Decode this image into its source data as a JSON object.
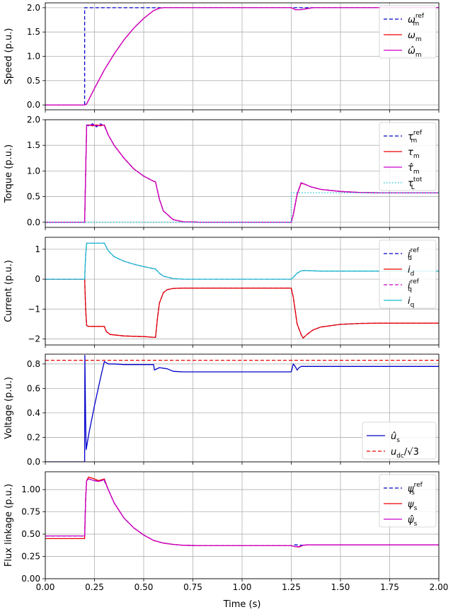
{
  "figure": {
    "xlabel": "Time (s)"
  },
  "chart_data": [
    {
      "type": "line",
      "ylabel": "Speed (p.u.)",
      "xlim": [
        0,
        2
      ],
      "ylim": [
        -0.1,
        2.1
      ],
      "xticks": [
        "0.00",
        "0.25",
        "0.50",
        "0.75",
        "1.00",
        "1.25",
        "1.50",
        "1.75",
        "2.00"
      ],
      "yticks": [
        "0.0",
        "0.5",
        "1.0",
        "1.5",
        "2.0"
      ],
      "grid": true,
      "legend_position": "top-right",
      "series": [
        {
          "name": "ω_m^ref",
          "legend": {
            "base": "ω",
            "sub": "m",
            "sup": "ref"
          },
          "color": "#0000cc",
          "style": "dashed",
          "x": [
            0,
            0.2,
            0.2,
            2.0
          ],
          "y": [
            0,
            0,
            2.0,
            2.0
          ]
        },
        {
          "name": "ω_m",
          "legend": {
            "base": "ω",
            "sub": "m"
          },
          "color": "#ee0000",
          "style": "solid",
          "x": [
            0,
            0.2,
            0.21,
            0.25,
            0.3,
            0.35,
            0.4,
            0.45,
            0.5,
            0.55,
            0.58,
            0.6,
            1.25,
            1.27,
            1.3,
            1.33,
            1.36,
            2.0
          ],
          "y": [
            0,
            0,
            0.02,
            0.34,
            0.72,
            1.05,
            1.34,
            1.58,
            1.78,
            1.94,
            1.99,
            2.0,
            2.0,
            1.96,
            1.96,
            1.98,
            2.0,
            2.0
          ]
        },
        {
          "name": "ω̂_m",
          "legend": {
            "base": "ω̂",
            "sub": "m"
          },
          "color": "#cc00cc",
          "style": "solid",
          "x": [
            0,
            0.2,
            0.21,
            0.25,
            0.3,
            0.35,
            0.4,
            0.45,
            0.5,
            0.55,
            0.58,
            0.6,
            1.25,
            1.27,
            1.3,
            1.33,
            1.36,
            2.0
          ],
          "y": [
            0,
            0,
            0.02,
            0.34,
            0.72,
            1.05,
            1.34,
            1.58,
            1.78,
            1.94,
            1.99,
            2.0,
            2.0,
            1.96,
            1.96,
            1.98,
            2.0,
            2.0
          ]
        }
      ]
    },
    {
      "type": "line",
      "ylabel": "Torque (p.u.)",
      "xlim": [
        0,
        2
      ],
      "ylim": [
        -0.1,
        2.0
      ],
      "xticks": [
        "0.00",
        "0.25",
        "0.50",
        "0.75",
        "1.00",
        "1.25",
        "1.50",
        "1.75",
        "2.00"
      ],
      "yticks": [
        "0.0",
        "0.5",
        "1.0",
        "1.5",
        "2.0"
      ],
      "grid": true,
      "legend_position": "top-right",
      "series": [
        {
          "name": "τ_m^ref",
          "legend": {
            "base": "τ",
            "sub": "m",
            "sup": "ref"
          },
          "color": "#0000cc",
          "style": "dashed",
          "x": [
            0,
            0.2,
            0.21,
            0.22,
            0.24,
            0.26,
            0.28,
            0.3,
            0.32,
            0.35,
            0.4,
            0.45,
            0.5,
            0.55,
            0.56,
            0.58,
            0.6,
            0.65,
            0.7,
            0.8,
            1.25,
            1.26,
            1.28,
            1.3,
            1.32,
            1.35,
            1.4,
            1.5,
            1.6,
            1.7,
            2.0
          ],
          "y": [
            0,
            0,
            1.9,
            1.88,
            1.92,
            1.86,
            1.92,
            1.88,
            1.7,
            1.5,
            1.25,
            1.04,
            0.9,
            0.8,
            0.79,
            0.45,
            0.22,
            0.05,
            0.01,
            0,
            0,
            0.15,
            0.55,
            0.77,
            0.74,
            0.69,
            0.64,
            0.6,
            0.58,
            0.575,
            0.575
          ]
        },
        {
          "name": "τ_m",
          "legend": {
            "base": "τ",
            "sub": "m"
          },
          "color": "#ee0000",
          "style": "solid",
          "x": [
            0,
            0.2,
            0.21,
            0.22,
            0.24,
            0.26,
            0.28,
            0.3,
            0.32,
            0.35,
            0.4,
            0.45,
            0.5,
            0.55,
            0.56,
            0.58,
            0.6,
            0.65,
            0.7,
            0.8,
            1.25,
            1.26,
            1.28,
            1.3,
            1.32,
            1.35,
            1.4,
            1.5,
            1.6,
            1.7,
            2.0
          ],
          "y": [
            0,
            0,
            1.88,
            1.9,
            1.88,
            1.9,
            1.88,
            1.9,
            1.7,
            1.5,
            1.25,
            1.04,
            0.9,
            0.8,
            0.79,
            0.45,
            0.22,
            0.05,
            0.01,
            0,
            0,
            0.14,
            0.54,
            0.76,
            0.74,
            0.69,
            0.64,
            0.6,
            0.58,
            0.575,
            0.575
          ]
        },
        {
          "name": "τ̂_m",
          "legend": {
            "base": "τ̂",
            "sub": "m"
          },
          "color": "#cc00cc",
          "style": "solid",
          "x": [
            0,
            0.2,
            0.21,
            0.22,
            0.24,
            0.26,
            0.28,
            0.3,
            0.32,
            0.35,
            0.4,
            0.45,
            0.5,
            0.55,
            0.56,
            0.58,
            0.6,
            0.65,
            0.7,
            0.8,
            1.25,
            1.26,
            1.28,
            1.3,
            1.32,
            1.35,
            1.4,
            1.5,
            1.6,
            1.7,
            2.0
          ],
          "y": [
            0,
            0,
            1.89,
            1.89,
            1.9,
            1.88,
            1.9,
            1.89,
            1.7,
            1.5,
            1.25,
            1.04,
            0.9,
            0.8,
            0.79,
            0.45,
            0.22,
            0.05,
            0.01,
            0,
            0,
            0.15,
            0.55,
            0.77,
            0.74,
            0.69,
            0.64,
            0.6,
            0.58,
            0.575,
            0.575
          ]
        },
        {
          "name": "τ_L^tot",
          "legend": {
            "base": "τ",
            "sub": "L",
            "sup": "tot"
          },
          "color": "#17becf",
          "style": "dotted",
          "x": [
            0,
            1.25,
            1.25,
            2.0
          ],
          "y": [
            0,
            0,
            0.575,
            0.575
          ]
        }
      ]
    },
    {
      "type": "line",
      "ylabel": "Current (p.u.)",
      "xlim": [
        0,
        2
      ],
      "ylim": [
        -2.2,
        1.4
      ],
      "xticks": [
        "0.00",
        "0.25",
        "0.50",
        "0.75",
        "1.00",
        "1.25",
        "1.50",
        "1.75",
        "2.00"
      ],
      "yticks": [
        "−2",
        "−1",
        "0",
        "1"
      ],
      "yticks_values": [
        -2,
        -1,
        0,
        1
      ],
      "grid": true,
      "legend_position": "top-right",
      "series": [
        {
          "name": "i_d^ref",
          "legend": {
            "base": "i",
            "sub": "d",
            "sup": "ref"
          },
          "color": "#0000cc",
          "style": "dashed",
          "x": [
            0,
            0.2,
            0.205,
            0.21,
            0.22,
            0.25,
            0.28,
            0.3,
            0.31,
            0.33,
            0.4,
            0.5,
            0.56,
            0.57,
            0.58,
            0.6,
            0.62,
            0.65,
            0.7,
            1.25,
            1.26,
            1.28,
            1.3,
            1.31,
            1.33,
            1.36,
            1.4,
            1.5,
            1.6,
            1.7,
            2.0
          ],
          "y": [
            0,
            0,
            -1.0,
            -1.55,
            -1.58,
            -1.58,
            -1.58,
            -1.58,
            -1.75,
            -1.85,
            -1.9,
            -1.92,
            -1.95,
            -1.3,
            -0.8,
            -0.45,
            -0.35,
            -0.31,
            -0.3,
            -0.3,
            -0.6,
            -1.5,
            -1.85,
            -1.97,
            -1.85,
            -1.7,
            -1.6,
            -1.51,
            -1.48,
            -1.47,
            -1.47
          ]
        },
        {
          "name": "i_d",
          "legend": {
            "base": "i",
            "sub": "d"
          },
          "color": "#ee0000",
          "style": "solid",
          "x": [
            0,
            0.2,
            0.205,
            0.21,
            0.22,
            0.25,
            0.28,
            0.3,
            0.31,
            0.33,
            0.4,
            0.5,
            0.56,
            0.57,
            0.58,
            0.6,
            0.62,
            0.65,
            0.7,
            1.25,
            1.26,
            1.28,
            1.3,
            1.31,
            1.33,
            1.36,
            1.4,
            1.5,
            1.6,
            1.7,
            2.0
          ],
          "y": [
            0,
            0,
            -1.0,
            -1.55,
            -1.58,
            -1.58,
            -1.58,
            -1.58,
            -1.75,
            -1.85,
            -1.9,
            -1.92,
            -1.95,
            -1.3,
            -0.8,
            -0.45,
            -0.35,
            -0.31,
            -0.3,
            -0.3,
            -0.6,
            -1.5,
            -1.85,
            -1.97,
            -1.85,
            -1.7,
            -1.6,
            -1.51,
            -1.48,
            -1.47,
            -1.47
          ]
        },
        {
          "name": "i_q^ref",
          "legend": {
            "base": "i",
            "sub": "q",
            "sup": "ref"
          },
          "color": "#cc00cc",
          "style": "dashed",
          "x": [
            0,
            0.2,
            0.205,
            0.21,
            0.22,
            0.25,
            0.28,
            0.3,
            0.32,
            0.35,
            0.4,
            0.45,
            0.5,
            0.55,
            0.56,
            0.58,
            0.6,
            0.65,
            0.7,
            0.8,
            1.25,
            1.26,
            1.28,
            1.3,
            1.32,
            1.35,
            1.4,
            1.5,
            2.0
          ],
          "y": [
            0,
            0,
            0.8,
            1.2,
            1.2,
            1.2,
            1.2,
            1.2,
            0.95,
            0.75,
            0.6,
            0.5,
            0.42,
            0.35,
            0.34,
            0.2,
            0.1,
            0.02,
            0,
            0,
            0,
            0.06,
            0.2,
            0.28,
            0.29,
            0.28,
            0.27,
            0.27,
            0.27
          ]
        },
        {
          "name": "i_q",
          "legend": {
            "base": "i",
            "sub": "q"
          },
          "color": "#17becf",
          "style": "solid",
          "x": [
            0,
            0.2,
            0.205,
            0.21,
            0.22,
            0.25,
            0.28,
            0.3,
            0.32,
            0.35,
            0.4,
            0.45,
            0.5,
            0.55,
            0.56,
            0.58,
            0.6,
            0.65,
            0.7,
            0.8,
            1.25,
            1.26,
            1.28,
            1.3,
            1.32,
            1.35,
            1.4,
            1.5,
            2.0
          ],
          "y": [
            0,
            0,
            0.8,
            1.2,
            1.2,
            1.2,
            1.2,
            1.2,
            0.95,
            0.75,
            0.6,
            0.5,
            0.42,
            0.35,
            0.34,
            0.2,
            0.1,
            0.02,
            0,
            0,
            0,
            0.06,
            0.2,
            0.28,
            0.29,
            0.28,
            0.27,
            0.27,
            0.27
          ]
        }
      ]
    },
    {
      "type": "line",
      "ylabel": "Voltage (p.u.)",
      "xlim": [
        0,
        2
      ],
      "ylim": [
        0,
        0.88
      ],
      "xticks": [
        "0.00",
        "0.25",
        "0.50",
        "0.75",
        "1.00",
        "1.25",
        "1.50",
        "1.75",
        "2.00"
      ],
      "yticks": [
        "0.0",
        "0.2",
        "0.4",
        "0.6",
        "0.8"
      ],
      "grid": true,
      "legend_position": "bottom-right",
      "series": [
        {
          "name": "û_s",
          "legend": {
            "base": "û",
            "sub": "s"
          },
          "color": "#0000cc",
          "style": "solid",
          "x": [
            0,
            0.2,
            0.201,
            0.205,
            0.208,
            0.22,
            0.25,
            0.28,
            0.3,
            0.32,
            0.35,
            0.4,
            0.5,
            0.55,
            0.555,
            0.56,
            0.58,
            0.62,
            0.65,
            0.7,
            1.0,
            1.25,
            1.26,
            1.27,
            1.28,
            1.29,
            1.3,
            1.32,
            1.35,
            1.5,
            2.0
          ],
          "y": [
            0,
            0,
            0.87,
            0.32,
            0.1,
            0.22,
            0.46,
            0.68,
            0.82,
            0.8,
            0.8,
            0.795,
            0.795,
            0.795,
            0.75,
            0.755,
            0.77,
            0.76,
            0.74,
            0.735,
            0.735,
            0.735,
            0.8,
            0.78,
            0.75,
            0.77,
            0.78,
            0.78,
            0.78,
            0.78,
            0.78
          ]
        },
        {
          "name": "u_dc/√3",
          "legend": {
            "base": "u",
            "sub": "dc",
            "suffix": "/√3"
          },
          "color": "#ee0000",
          "style": "dashed",
          "x": [
            0,
            2.0
          ],
          "y": [
            0.83,
            0.83
          ]
        }
      ]
    },
    {
      "type": "line",
      "ylabel": "Flux linkage (p.u.)",
      "xlim": [
        0,
        2
      ],
      "ylim": [
        0,
        1.2
      ],
      "xticks": [
        "0.00",
        "0.25",
        "0.50",
        "0.75",
        "1.00",
        "1.25",
        "1.50",
        "1.75",
        "2.00"
      ],
      "yticks": [
        "0.00",
        "0.25",
        "0.50",
        "0.75",
        "1.00"
      ],
      "grid": true,
      "legend_position": "top-right",
      "series": [
        {
          "name": "ψ_s^ref",
          "legend": {
            "base": "ψ",
            "sub": "s",
            "sup": "ref"
          },
          "color": "#0000cc",
          "style": "dashed",
          "x": [
            0,
            0.2,
            0.205,
            0.21,
            0.22,
            0.25,
            0.3,
            0.32,
            0.35,
            0.4,
            0.45,
            0.5,
            0.55,
            0.6,
            0.65,
            0.7,
            0.8,
            1.0,
            1.25,
            1.27,
            1.3,
            1.33,
            1.4,
            2.0
          ],
          "y": [
            0.48,
            0.48,
            0.9,
            1.1,
            1.12,
            1.1,
            1.1,
            1.0,
            0.85,
            0.68,
            0.57,
            0.49,
            0.43,
            0.4,
            0.385,
            0.375,
            0.37,
            0.37,
            0.37,
            0.38,
            0.375,
            0.38,
            0.38,
            0.38
          ]
        },
        {
          "name": "ψ_s",
          "legend": {
            "base": "ψ",
            "sub": "s"
          },
          "color": "#ee0000",
          "style": "solid",
          "x": [
            0,
            0.2,
            0.205,
            0.21,
            0.22,
            0.25,
            0.27,
            0.3,
            0.32,
            0.35,
            0.4,
            0.45,
            0.5,
            0.55,
            0.6,
            0.65,
            0.7,
            0.8,
            1.0,
            1.25,
            1.27,
            1.29,
            1.31,
            1.33,
            1.4,
            2.0
          ],
          "y": [
            0.45,
            0.45,
            0.9,
            1.1,
            1.14,
            1.12,
            1.1,
            1.12,
            1.0,
            0.85,
            0.68,
            0.57,
            0.49,
            0.43,
            0.4,
            0.385,
            0.375,
            0.37,
            0.37,
            0.37,
            0.36,
            0.355,
            0.375,
            0.38,
            0.38,
            0.38
          ]
        },
        {
          "name": "ψ̂_s",
          "legend": {
            "base": "ψ̂",
            "sub": "s"
          },
          "color": "#cc00cc",
          "style": "solid",
          "x": [
            0,
            0.2,
            0.205,
            0.21,
            0.22,
            0.25,
            0.27,
            0.3,
            0.32,
            0.35,
            0.4,
            0.45,
            0.5,
            0.55,
            0.6,
            0.65,
            0.7,
            0.8,
            1.0,
            1.25,
            1.27,
            1.29,
            1.31,
            1.33,
            1.4,
            2.0
          ],
          "y": [
            0.48,
            0.48,
            0.9,
            1.1,
            1.12,
            1.1,
            1.09,
            1.11,
            1.0,
            0.85,
            0.68,
            0.57,
            0.49,
            0.43,
            0.4,
            0.385,
            0.375,
            0.37,
            0.37,
            0.37,
            0.36,
            0.36,
            0.375,
            0.38,
            0.38,
            0.38
          ]
        }
      ]
    }
  ]
}
